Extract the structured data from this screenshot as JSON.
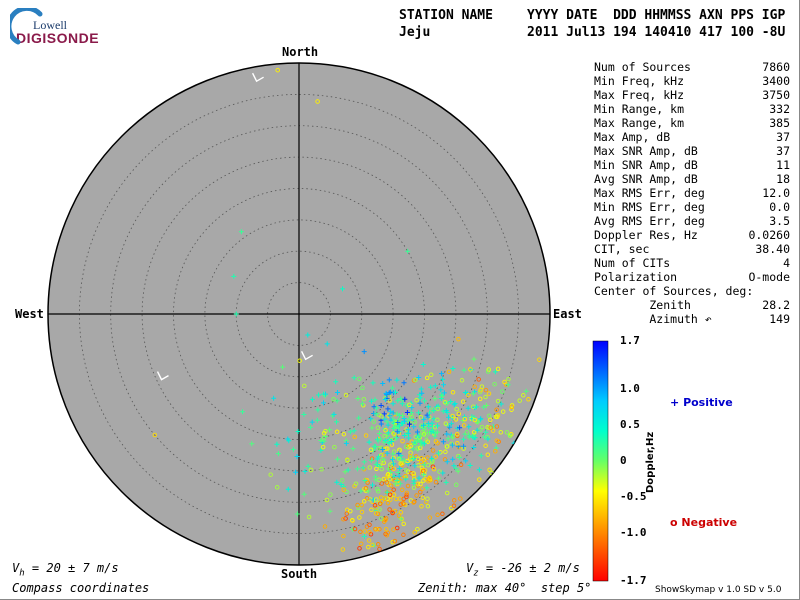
{
  "logo": {
    "line1": "Lowell",
    "line2": "DIGISONDE"
  },
  "header": {
    "station_label": "STATION NAME",
    "station_value": "Jeju",
    "columns_label": "YYYY DATE  DDD HHMMSS AXN PPS IGP",
    "columns_value": "2011 Jul13 194 140410 417 100 -8U"
  },
  "stats": [
    {
      "label": "Num of Sources",
      "value": "7860"
    },
    {
      "label": "Min Freq, kHz",
      "value": "3400"
    },
    {
      "label": "Max Freq, kHz",
      "value": "3750"
    },
    {
      "label": "Min Range, km",
      "value": "332"
    },
    {
      "label": "Max Range, km",
      "value": "385"
    },
    {
      "label": "Max Amp, dB",
      "value": "37"
    },
    {
      "label": "Max SNR Amp, dB",
      "value": "37"
    },
    {
      "label": "Min SNR Amp, dB",
      "value": "11"
    },
    {
      "label": "Avg SNR Amp, dB",
      "value": "18"
    },
    {
      "label": "Max RMS Err, deg",
      "value": "12.0"
    },
    {
      "label": "Min RMS Err, deg",
      "value": "0.0"
    },
    {
      "label": "Avg RMS Err, deg",
      "value": "3.5"
    },
    {
      "label": "Doppler Res, Hz",
      "value": "0.0260"
    },
    {
      "label": "CIT, sec",
      "value": "38.40"
    },
    {
      "label": "Num of CITs",
      "value": "4"
    },
    {
      "label": "Polarization",
      "value": "O-mode"
    },
    {
      "label": "Center of Sources, deg:",
      "value": ""
    },
    {
      "label": "        Zenith",
      "value": "28.2"
    },
    {
      "label": "        Azimuth ↶",
      "value": "149"
    }
  ],
  "compass": {
    "north": "North",
    "south": "South",
    "east": "East",
    "west": "West"
  },
  "footer": {
    "vh": "= 20 ± 7 m/s",
    "vz": "= -26 ± 2 m/s",
    "coords": "Compass coordinates",
    "zenith": "Zenith: max 40°  step 5°"
  },
  "colorbar": {
    "title": "Doppler,Hz",
    "ticks": [
      "1.7",
      "1.0",
      "0.5",
      "0",
      "-0.5",
      "-1.0",
      "-1.7"
    ],
    "colors": [
      "#0000ff",
      "#0066ff",
      "#00ccff",
      "#00ffcc",
      "#66ff66",
      "#ffff00",
      "#ffaa00",
      "#ff5500",
      "#ff0000"
    ]
  },
  "legend": {
    "positive": "Positive",
    "negative": "Negative",
    "positive_color": "#0000cc",
    "negative_color": "#cc0000"
  },
  "version": "ShowSkymap v 1.0   SD v 5.0",
  "chart_data": {
    "type": "scatter",
    "projection": "polar-zenith",
    "zenith_max_deg": 40,
    "zenith_step_deg": 5,
    "num_sources": 7860,
    "doppler_range_hz": [
      -1.7,
      1.7
    ],
    "center_of_sources": {
      "zenith_deg": 28.2,
      "azimuth_deg": 149
    },
    "markers": [
      {
        "zenith_deg": 38,
        "azimuth_deg": 350
      },
      {
        "zenith_deg": 7,
        "azimuth_deg": 170
      },
      {
        "zenith_deg": 24,
        "azimuth_deg": 245
      }
    ],
    "clusters": [
      {
        "zenith_deg": 32,
        "azimuth_deg": 148,
        "doppler_hz": -0.6,
        "spread_deg": 5,
        "count": 170
      },
      {
        "zenith_deg": 26,
        "azimuth_deg": 140,
        "doppler_hz": 0.1,
        "spread_deg": 6,
        "count": 230
      },
      {
        "zenith_deg": 30,
        "azimuth_deg": 125,
        "doppler_hz": 0.4,
        "spread_deg": 5,
        "count": 100
      },
      {
        "zenith_deg": 34,
        "azimuth_deg": 118,
        "doppler_hz": -0.4,
        "spread_deg": 4,
        "count": 80
      },
      {
        "zenith_deg": 22,
        "azimuth_deg": 135,
        "doppler_hz": 0.9,
        "spread_deg": 4,
        "count": 45
      },
      {
        "zenith_deg": 20,
        "azimuth_deg": 170,
        "doppler_hz": 0.2,
        "spread_deg": 7,
        "count": 70
      },
      {
        "zenith_deg": 36,
        "azimuth_deg": 160,
        "doppler_hz": -0.8,
        "spread_deg": 3,
        "count": 50
      }
    ],
    "outliers": [
      {
        "zenith_deg": 39,
        "azimuth_deg": 355,
        "doppler_hz": -0.5
      },
      {
        "zenith_deg": 34,
        "azimuth_deg": 5,
        "doppler_hz": -0.5
      },
      {
        "zenith_deg": 16,
        "azimuth_deg": 325,
        "doppler_hz": 0.2
      },
      {
        "zenith_deg": 12,
        "azimuth_deg": 300,
        "doppler_hz": 0.3
      },
      {
        "zenith_deg": 10,
        "azimuth_deg": 270,
        "doppler_hz": 0.3
      },
      {
        "zenith_deg": 20,
        "azimuth_deg": 60,
        "doppler_hz": 0.2
      },
      {
        "zenith_deg": 22,
        "azimuth_deg": 200,
        "doppler_hz": 0.1
      },
      {
        "zenith_deg": 18,
        "azimuth_deg": 210,
        "doppler_hz": 0.2
      },
      {
        "zenith_deg": 26,
        "azimuth_deg": 190,
        "doppler_hz": -0.2
      },
      {
        "zenith_deg": 8,
        "azimuth_deg": 60,
        "doppler_hz": 0.4
      },
      {
        "zenith_deg": 30,
        "azimuth_deg": 230,
        "doppler_hz": -0.6
      },
      {
        "zenith_deg": 12,
        "azimuth_deg": 120,
        "doppler_hz": 1.1
      }
    ]
  }
}
